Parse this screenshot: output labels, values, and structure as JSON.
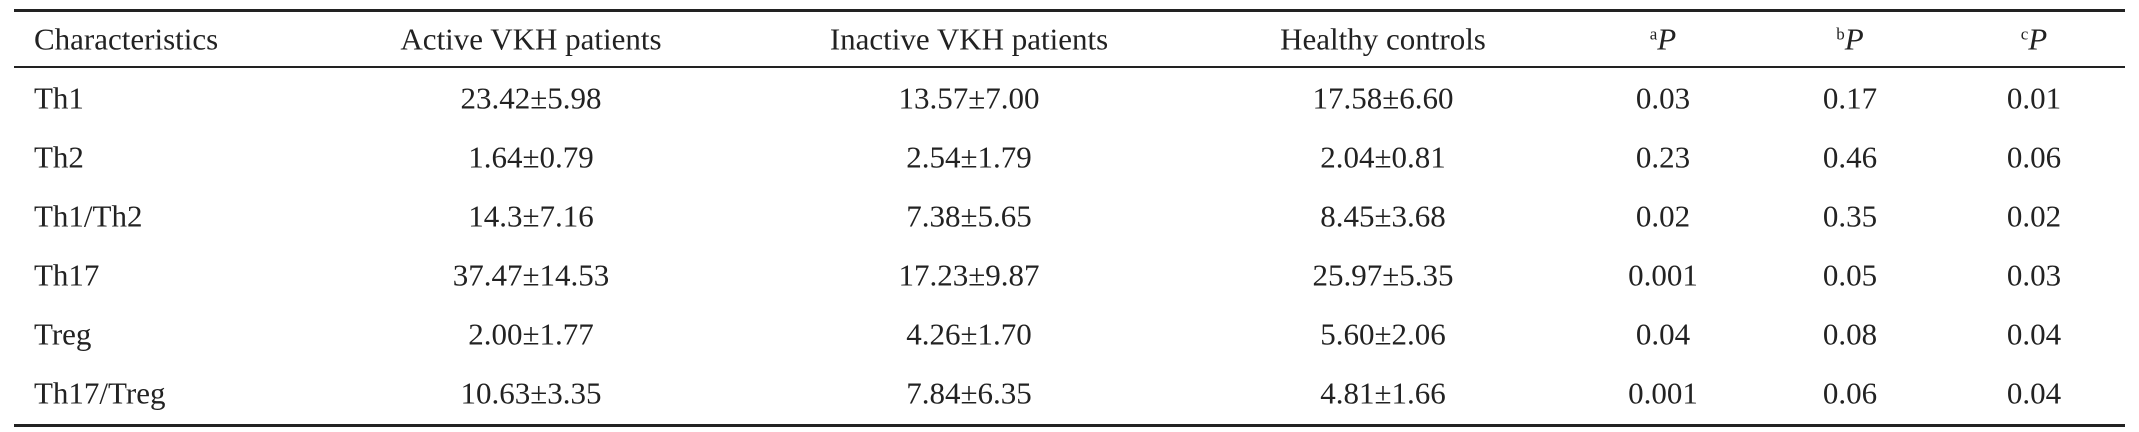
{
  "table": {
    "header": [
      "Characteristics",
      "Active VKH patients",
      "Inactive VKH patients",
      "Healthy controls",
      {
        "sup": "a",
        "text": "P"
      },
      {
        "sup": "b",
        "text": "P"
      },
      {
        "sup": "c",
        "text": "P"
      }
    ],
    "rows": [
      [
        "Th1",
        "23.42±5.98",
        "13.57±7.00",
        "17.58±6.60",
        "0.03",
        "0.17",
        "0.01"
      ],
      [
        "Th2",
        "1.64±0.79",
        "2.54±1.79",
        "2.04±0.81",
        "0.23",
        "0.46",
        "0.06"
      ],
      [
        "Th1/Th2",
        "14.3±7.16",
        "7.38±5.65",
        "8.45±3.68",
        "0.02",
        "0.35",
        "0.02"
      ],
      [
        "Th17",
        "37.47±14.53",
        "17.23±9.87",
        "25.97±5.35",
        "0.001",
        "0.05",
        "0.03"
      ],
      [
        "Treg",
        "2.00±1.77",
        "4.26±1.70",
        "5.60±2.06",
        "0.04",
        "0.08",
        "0.04"
      ],
      [
        "Th17/Treg",
        "10.63±3.35",
        "7.84±6.35",
        "4.81±1.66",
        "0.001",
        "0.06",
        "0.04"
      ]
    ]
  }
}
